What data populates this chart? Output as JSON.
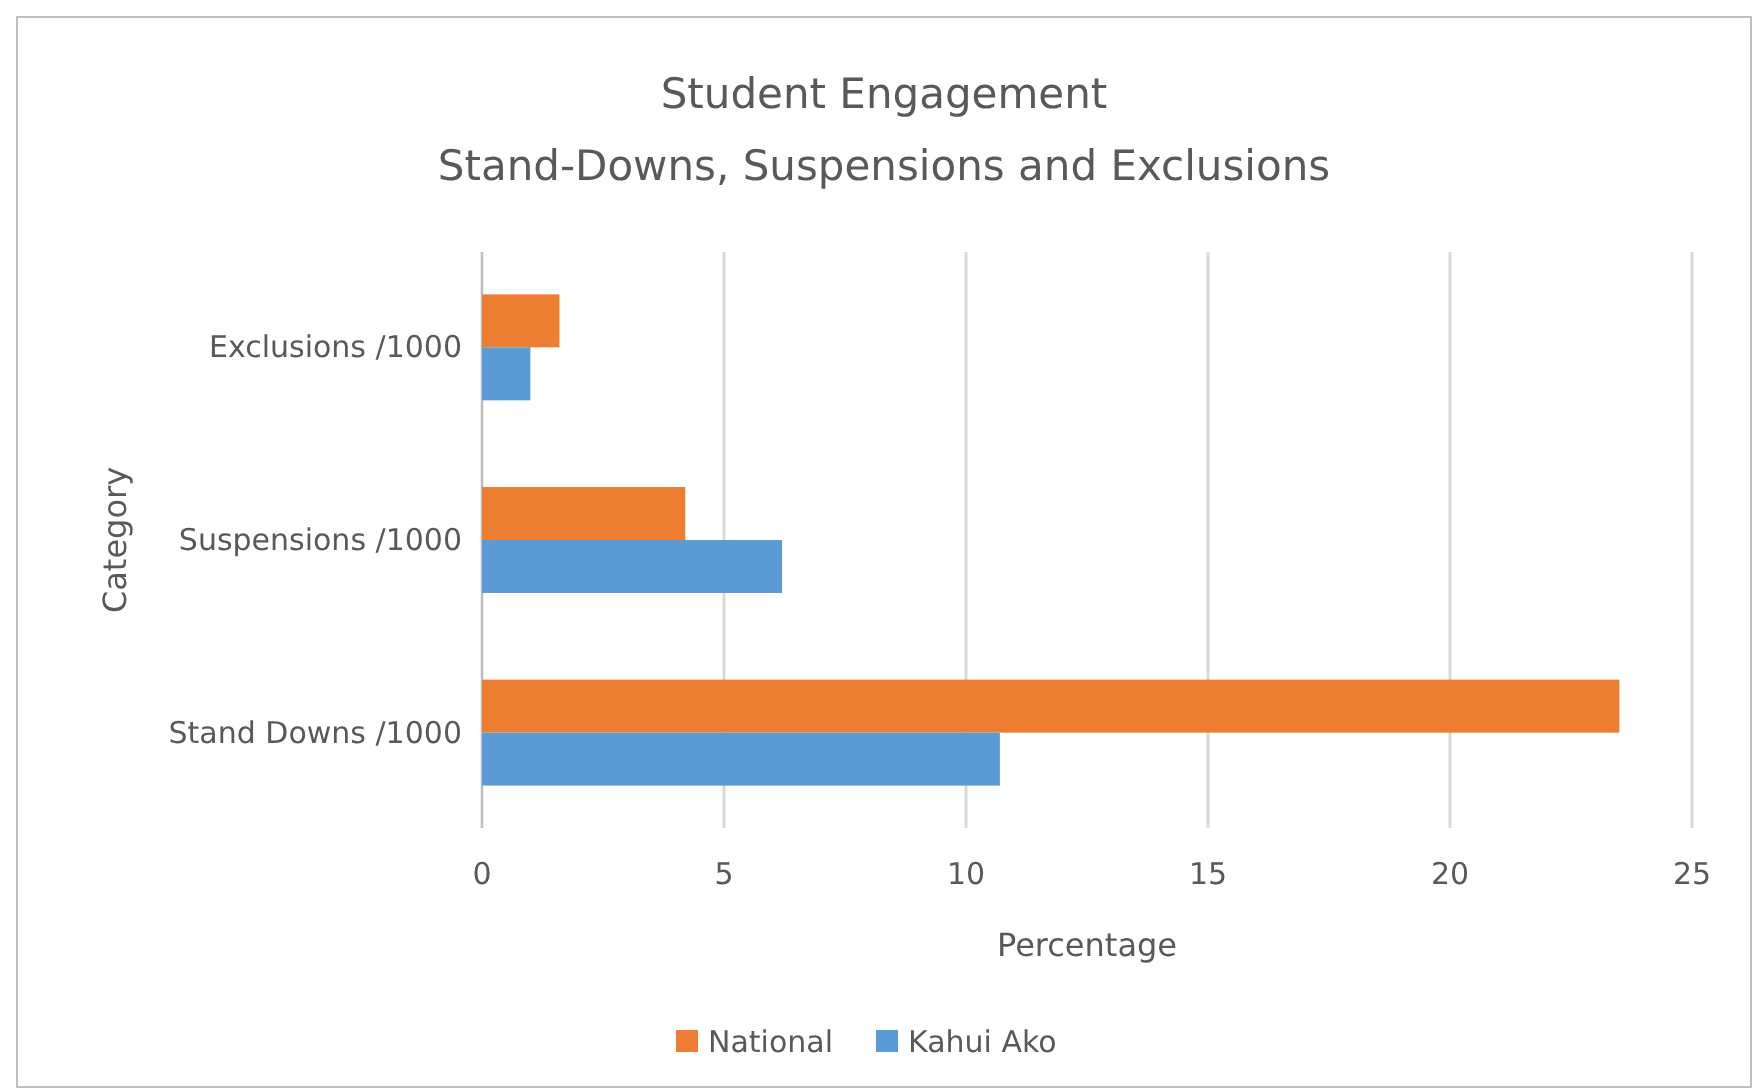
{
  "chart_data": {
    "type": "bar",
    "orientation": "horizontal",
    "title": "Student Engagement",
    "subtitle": "Stand-Downs, Suspensions and Exclusions",
    "xlabel": "Percentage",
    "ylabel": "Category",
    "categories": [
      "Exclusions /1000",
      "Suspensions /1000",
      "Stand Downs /1000"
    ],
    "series": [
      {
        "name": "National",
        "color": "#ed7d31",
        "values": [
          1.6,
          4.2,
          23.5
        ]
      },
      {
        "name": "Kahui Ako",
        "color": "#5b9bd5",
        "values": [
          1.0,
          6.2,
          10.7
        ]
      }
    ],
    "xlim": [
      0,
      25
    ],
    "xticks": [
      0,
      5,
      10,
      15,
      20,
      25
    ],
    "grid": "x",
    "legend": "bottom"
  }
}
